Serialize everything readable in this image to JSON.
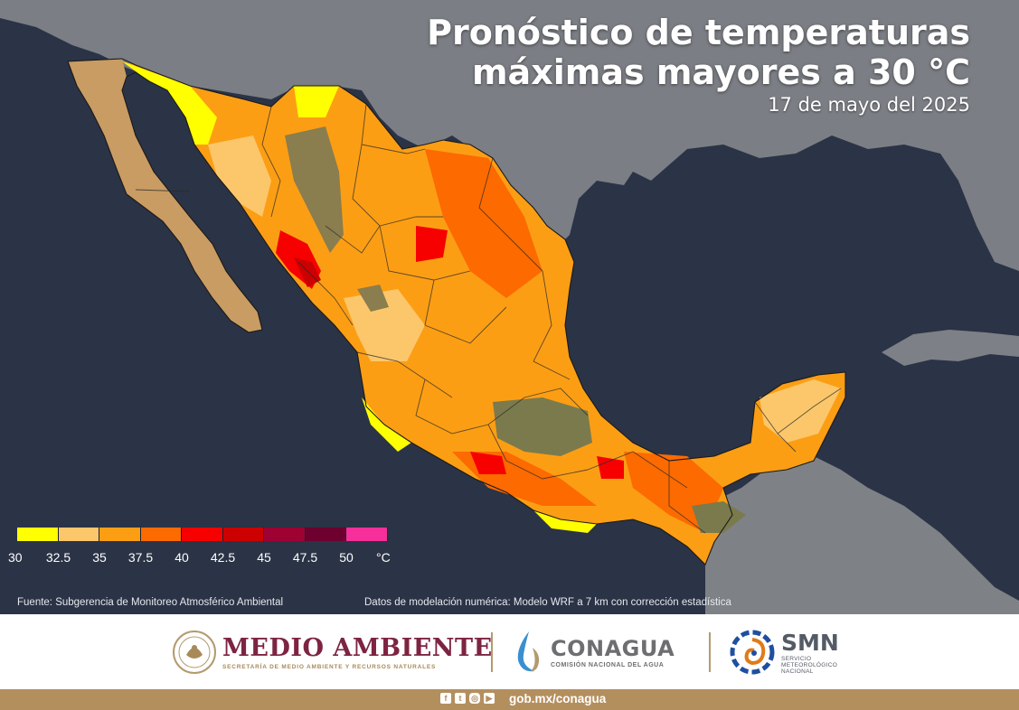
{
  "header": {
    "title_line1": "Pronóstico de temperaturas",
    "title_line2": "máximas mayores a 30 °C",
    "date": "17 de mayo del 2025"
  },
  "legend": {
    "colors": [
      "#ffff00",
      "#fcc76b",
      "#fc9e14",
      "#fc6a00",
      "#f60000",
      "#cc0000",
      "#9e0232",
      "#6e0030",
      "#f62f9a"
    ],
    "labels": [
      "30",
      "32.5",
      "35",
      "37.5",
      "40",
      "42.5",
      "45",
      "47.5",
      "50"
    ],
    "unit": "°C"
  },
  "sources": {
    "left": "Fuente: Subgerencia de Monitoreo Atmosférico Ambiental",
    "right": "Datos de modelación numérica: Modelo WRF a 7 km con corrección estadística"
  },
  "footer": {
    "medio_ambiente_title": "MEDIO AMBIENTE",
    "medio_ambiente_sub": "SECRETARÍA DE MEDIO AMBIENTE Y RECURSOS NATURALES",
    "conagua_title": "CONAGUA",
    "conagua_sub": "COMISIÓN NACIONAL DEL AGUA",
    "smn_title": "SMN",
    "smn_sub_1": "SERVICIO",
    "smn_sub_2": "METEOROLÓGICO",
    "smn_sub_3": "NACIONAL",
    "url": "gob.mx/conagua"
  },
  "icons": [
    "facebook-icon",
    "twitter-icon",
    "instagram-icon",
    "youtube-icon",
    "mexico-seal-icon",
    "conagua-logo-icon",
    "smn-logo-icon"
  ],
  "map_colors": {
    "ocean": "#2a3244",
    "land_outside": "#7a7d82",
    "no_data_land": "#c79a62"
  }
}
